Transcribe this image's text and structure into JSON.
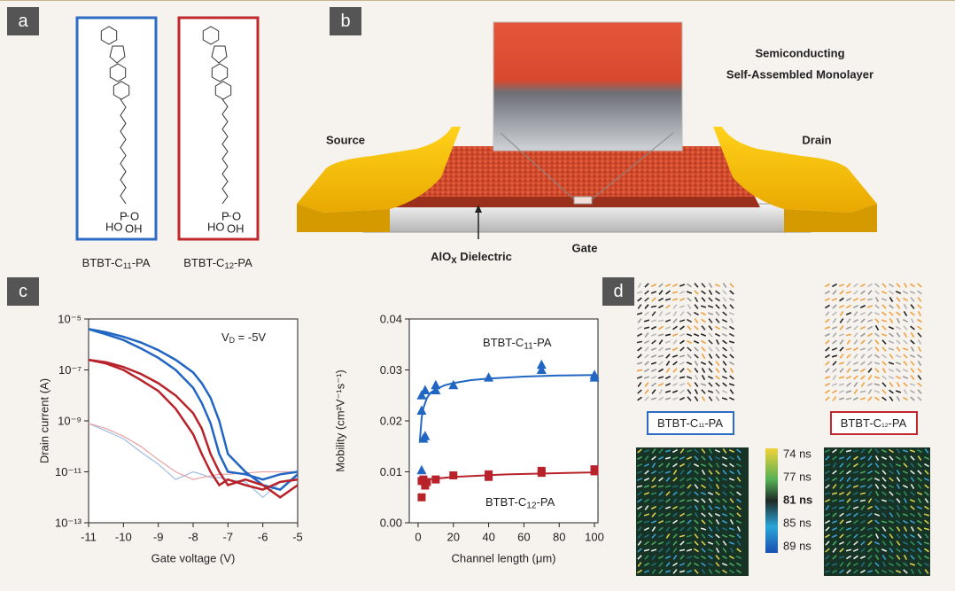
{
  "panel_labels": [
    "a",
    "b",
    "c",
    "d"
  ],
  "panel_a": {
    "molecules": [
      {
        "text": "BTBT-C",
        "sub": "11",
        "tail": "-PA"
      },
      {
        "text": "BTBT-C",
        "sub": "12",
        "tail": "-PA"
      }
    ],
    "atoms": [
      "HO",
      "P",
      "O",
      "OH"
    ]
  },
  "panel_b": {
    "title": [
      "Semiconducting",
      "Self-Assembled Monolayer"
    ],
    "source": "Source",
    "drain": "Drain",
    "dielectric": {
      "text": "AlO",
      "sub": "x",
      "tail": " Dielectric"
    },
    "gate": "Gate"
  },
  "chart_data": [
    {
      "type": "line",
      "xlabel": "Gate voltage (V)",
      "ylabel": "Drain current (A)",
      "annotation": {
        "text": "V",
        "sub": "D",
        "tail": " = -5V"
      },
      "yscale": "log",
      "xlim": [
        -11,
        -5
      ],
      "xticks": [
        -11,
        -10,
        -9,
        -8,
        -7,
        -6,
        -5
      ],
      "ylim": [
        1e-13,
        1e-05
      ],
      "yticks": [
        {
          "value": 1e-05,
          "label": "10⁻⁵"
        },
        {
          "value": 1e-07,
          "label": "10⁻⁷"
        },
        {
          "value": 1e-09,
          "label": "10⁻⁹"
        },
        {
          "value": 1e-11,
          "label": "10⁻¹¹"
        },
        {
          "value": 1e-13,
          "label": "10⁻¹³"
        }
      ],
      "x": [
        -11,
        -10.5,
        -10,
        -9.5,
        -9,
        -8.5,
        -8,
        -7.75,
        -7.5,
        -7.25,
        -7,
        -6.5,
        -6,
        -5.5,
        -5
      ],
      "series": [
        {
          "color": "#9dbbe3",
          "width": 1.2,
          "values": [
            8e-10,
            4e-10,
            2e-10,
            6e-11,
            2e-11,
            5e-12,
            1e-11,
            8e-12,
            6e-12,
            6e-12,
            5e-12,
            4e-12,
            1e-12,
            4e-12,
            6e-12
          ]
        },
        {
          "color": "#e8a0a3",
          "width": 1.2,
          "values": [
            8e-10,
            5e-10,
            2.5e-10,
            1e-10,
            3e-11,
            1e-11,
            5e-12,
            6e-12,
            7e-12,
            8e-12,
            8e-12,
            9e-12,
            1e-11,
            1e-11,
            1e-11
          ]
        },
        {
          "color": "#2166c2",
          "width": 2.5,
          "values": [
            4e-06,
            2.5e-06,
            1.5e-06,
            7e-07,
            3e-07,
            1e-07,
            2e-08,
            5e-09,
            8e-10,
            5e-11,
            1e-11,
            8e-12,
            5e-12,
            8e-12,
            1e-11
          ]
        },
        {
          "color": "#2166c2",
          "width": 2.5,
          "values": [
            4e-06,
            3e-06,
            2e-06,
            1.2e-06,
            6e-07,
            2.5e-07,
            8e-08,
            3e-08,
            8e-09,
            1e-09,
            5e-11,
            1e-11,
            3e-12,
            2e-12,
            8e-12
          ]
        },
        {
          "color": "#b8232b",
          "width": 2.5,
          "values": [
            2.5e-07,
            1.8e-07,
            1e-07,
            4e-08,
            1.5e-08,
            3e-09,
            3e-10,
            5e-11,
            1e-11,
            3e-12,
            5e-12,
            3e-12,
            2e-12,
            4e-12,
            5e-12
          ]
        },
        {
          "color": "#b8232b",
          "width": 2.5,
          "values": [
            2.5e-07,
            2e-07,
            1.3e-07,
            7e-08,
            3e-08,
            1e-08,
            2e-09,
            5e-10,
            5e-11,
            1e-11,
            3e-12,
            5e-12,
            3e-12,
            1e-12,
            3e-12
          ]
        }
      ]
    },
    {
      "type": "scatter",
      "xlabel": "Channel length (μm)",
      "ylabel": "Mobility (cm²V⁻¹s⁻¹)",
      "xlim": [
        -5,
        102
      ],
      "xticks": [
        0,
        20,
        40,
        60,
        80,
        100
      ],
      "ylim": [
        0,
        0.04
      ],
      "yticks": [
        {
          "value": 0,
          "label": "0.00"
        },
        0.01,
        0.02,
        0.03,
        0.04
      ],
      "annotations": [
        {
          "text": "BTBT-C",
          "sub": "11",
          "tail": "-PA",
          "color": "#2166c2"
        },
        {
          "text": "BTBT-C",
          "sub": "12",
          "tail": "-PA",
          "color": "#b8232b"
        }
      ],
      "series": [
        {
          "color": "#2166c2",
          "marker": "triangle",
          "x": [
            2,
            2,
            2,
            3,
            4,
            4,
            10,
            10,
            20,
            40,
            70,
            70,
            100,
            100
          ],
          "values": [
            0.022,
            0.025,
            0.0103,
            0.0165,
            0.026,
            0.017,
            0.027,
            0.026,
            0.027,
            0.0285,
            0.03,
            0.031,
            0.029,
            0.0285
          ]
        },
        {
          "color": "#b8232b",
          "marker": "square",
          "x": [
            2,
            2,
            3,
            4,
            5,
            10,
            20,
            40,
            40,
            70,
            70,
            100,
            100
          ],
          "values": [
            0.005,
            0.0082,
            0.0085,
            0.0073,
            0.008,
            0.0085,
            0.0093,
            0.009,
            0.0095,
            0.0098,
            0.0102,
            0.0105,
            0.0101
          ]
        },
        {
          "color": "#2166c2",
          "marker": "none",
          "x": [
            1,
            2,
            3,
            5,
            7,
            10,
            15,
            20,
            30,
            40,
            60,
            80,
            100
          ],
          "values": [
            0.016,
            0.0205,
            0.0225,
            0.0245,
            0.0255,
            0.0262,
            0.027,
            0.0274,
            0.028,
            0.0283,
            0.0287,
            0.0289,
            0.029
          ]
        },
        {
          "color": "#b8232b",
          "marker": "none",
          "x": [
            1,
            5,
            20,
            50,
            100
          ],
          "values": [
            0.0075,
            0.0085,
            0.009,
            0.0095,
            0.0099
          ]
        }
      ]
    }
  ],
  "panel_d": {
    "labels": [
      {
        "text": "BTBT-C",
        "sub": "11",
        "tail": "-PA"
      },
      {
        "text": "BTBT-C",
        "sub": "12",
        "tail": "-PA"
      }
    ],
    "colorbar": [
      "74 ns",
      "77 ns",
      "81 ns",
      "85 ns",
      "89 ns"
    ]
  }
}
